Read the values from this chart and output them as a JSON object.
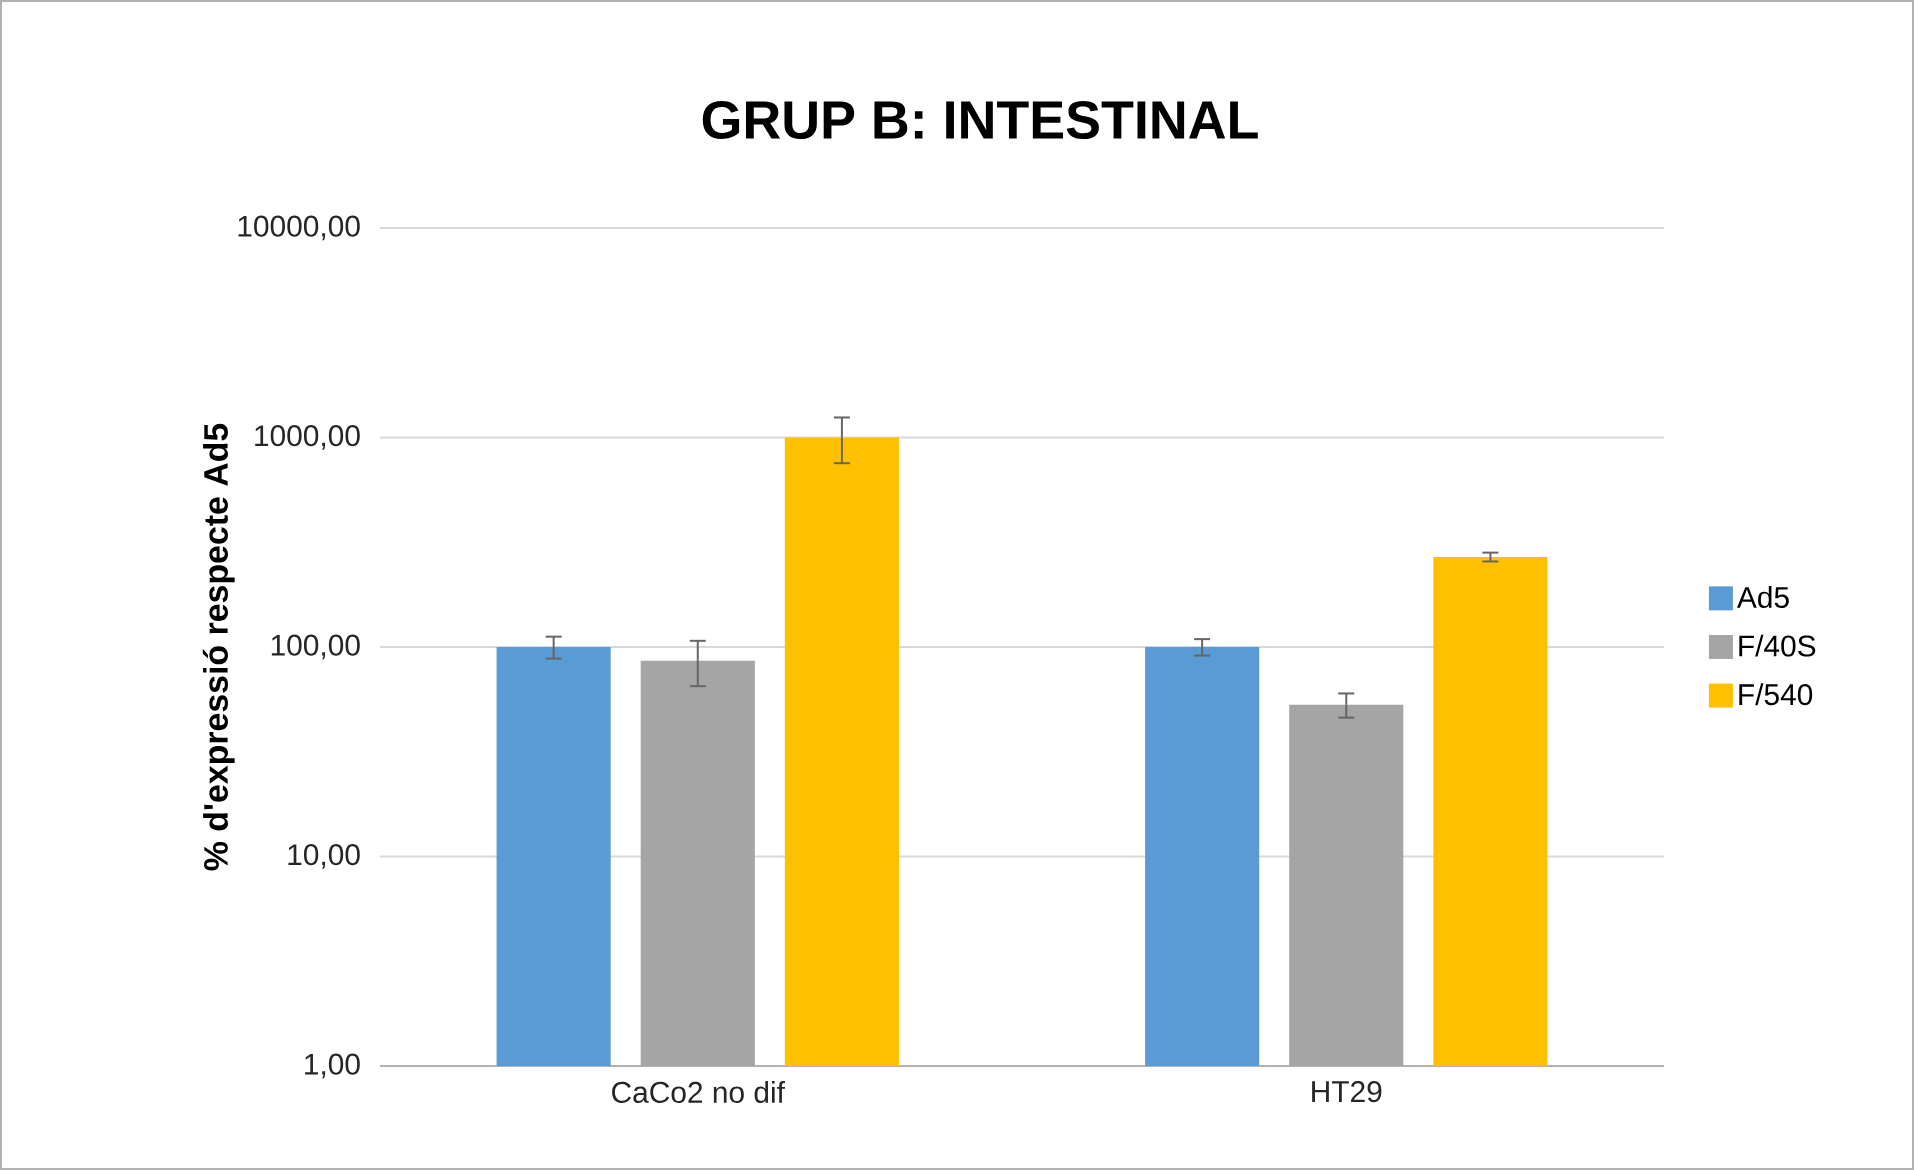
{
  "chart_data": {
    "type": "bar",
    "title": "GRUP B: INTESTINAL",
    "ylabel": "% d'expressió respecte Ad5",
    "categories": [
      "CaCo2 no dif",
      "HT29"
    ],
    "series": [
      {
        "name": "Ad5",
        "color": "#5b9bd5",
        "values": [
          100,
          100
        ],
        "errors": [
          12,
          9
        ]
      },
      {
        "name": "F/40S",
        "color": "#a5a5a5",
        "values": [
          86,
          53
        ],
        "errors": [
          21,
          7
        ]
      },
      {
        "name": "F/540",
        "color": "#ffc000",
        "values": [
          1000,
          269
        ],
        "errors": [
          246,
          13
        ]
      }
    ],
    "log": "y",
    "ylim": [
      1,
      10000
    ],
    "yticks": [
      {
        "value": 1,
        "label": "1,00"
      },
      {
        "value": 10,
        "label": "10,00"
      },
      {
        "value": 100,
        "label": "100,00"
      },
      {
        "value": 1000,
        "label": "1000,00"
      },
      {
        "value": 10000,
        "label": "10000,00"
      }
    ],
    "grid": "y",
    "legend": "right"
  }
}
